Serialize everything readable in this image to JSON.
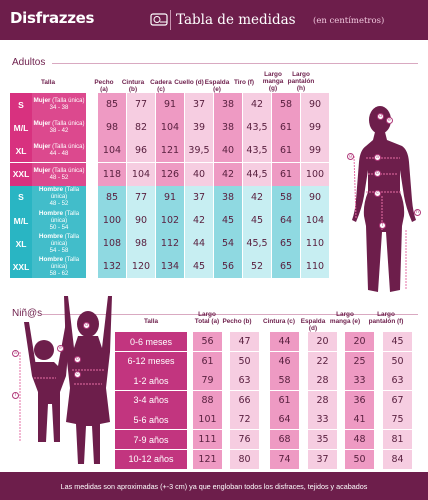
{
  "header": {
    "brand": "Disfrazzes",
    "title": "Tabla de medidas",
    "subtitle": "(en centímetros)"
  },
  "colors": {
    "header_bg": "#6d1e4b",
    "women": "#d8317f",
    "women_light": "#f6cde1",
    "women_mid": "#ee9ac3",
    "men": "#29b5c3",
    "men_light": "#c7eef2",
    "men_mid": "#8fd9e1",
    "kids": "#c2357f"
  },
  "adults": {
    "title": "Adultos",
    "columns": [
      "Talla",
      "Pecho (a)",
      "Cintura (b)",
      "Cadera (c)",
      "Cuello (d)",
      "Espalda (e)",
      "Tiro (f)",
      "Largo manga (g)",
      "Largo pantalón (h)"
    ],
    "rows": [
      {
        "size": "S",
        "gender": "Mujer",
        "note": "(Talla única)",
        "range": "34 - 38",
        "group": "women",
        "values": [
          "85",
          "77",
          "91",
          "37",
          "38",
          "42",
          "58",
          "90"
        ]
      },
      {
        "size": "M/L",
        "gender": "Mujer",
        "note": "(Talla única)",
        "range": "38 - 42",
        "group": "women",
        "values": [
          "98",
          "82",
          "104",
          "39",
          "38",
          "43,5",
          "61",
          "99"
        ]
      },
      {
        "size": "XL",
        "gender": "Mujer",
        "note": "(Talla única)",
        "range": "44 - 48",
        "group": "women",
        "values": [
          "104",
          "96",
          "121",
          "39,5",
          "40",
          "43,5",
          "61",
          "99"
        ]
      },
      {
        "size": "XXL",
        "gender": "Mujer",
        "note": "(Talla única)",
        "range": "48 - 52",
        "group": "women",
        "values": [
          "118",
          "104",
          "126",
          "40",
          "42",
          "44,5",
          "61",
          "100"
        ]
      },
      {
        "size": "S",
        "gender": "Hombre",
        "note": "(Talla única)",
        "range": "48 - 52",
        "group": "men",
        "values": [
          "85",
          "77",
          "91",
          "37",
          "38",
          "42",
          "58",
          "90"
        ]
      },
      {
        "size": "M/L",
        "gender": "Hombre",
        "note": "(Talla única)",
        "range": "50 - 54",
        "group": "men",
        "values": [
          "100",
          "90",
          "102",
          "42",
          "45",
          "45",
          "64",
          "104"
        ]
      },
      {
        "size": "XL",
        "gender": "Hombre",
        "note": "(Talla única)",
        "range": "54 - 58",
        "group": "men",
        "values": [
          "108",
          "98",
          "112",
          "44",
          "54",
          "45,5",
          "65",
          "110"
        ]
      },
      {
        "size": "XXL",
        "gender": "Hombre",
        "note": "(Talla única)",
        "range": "58 - 62",
        "group": "men",
        "values": [
          "132",
          "120",
          "134",
          "45",
          "56",
          "52",
          "65",
          "110"
        ]
      }
    ]
  },
  "kids": {
    "title": "Niñ@s",
    "columns": [
      "Talla",
      "Largo Total (a)",
      "Pecho (b)",
      "Cintura (c)",
      "Espalda (d)",
      "Largo manga (e)",
      "Largo pantalón (f)"
    ],
    "rows": [
      {
        "age": "0-6 meses",
        "values": [
          "56",
          "47",
          "44",
          "20",
          "20",
          "45"
        ]
      },
      {
        "age": "6-12 meses",
        "values": [
          "61",
          "50",
          "46",
          "22",
          "25",
          "50"
        ]
      },
      {
        "age": "1-2 años",
        "values": [
          "79",
          "63",
          "58",
          "28",
          "33",
          "63"
        ]
      },
      {
        "age": "3-4 años",
        "values": [
          "88",
          "66",
          "61",
          "28",
          "36",
          "67"
        ]
      },
      {
        "age": "5-6 años",
        "values": [
          "101",
          "72",
          "64",
          "33",
          "41",
          "75"
        ]
      },
      {
        "age": "7-9 años",
        "values": [
          "111",
          "76",
          "68",
          "35",
          "48",
          "81"
        ]
      },
      {
        "age": "10-12 años",
        "values": [
          "121",
          "80",
          "74",
          "37",
          "50",
          "84"
        ]
      }
    ]
  },
  "figure_labels": {
    "adult": [
      "a",
      "b",
      "c",
      "d",
      "e",
      "f",
      "g",
      "h"
    ],
    "kid": [
      "a",
      "b",
      "c",
      "d",
      "e",
      "f"
    ]
  },
  "footer": {
    "text": "Las medidas son aproximadas (+-3 cm) ya que engloban todos los disfraces, tejidos y acabados"
  }
}
